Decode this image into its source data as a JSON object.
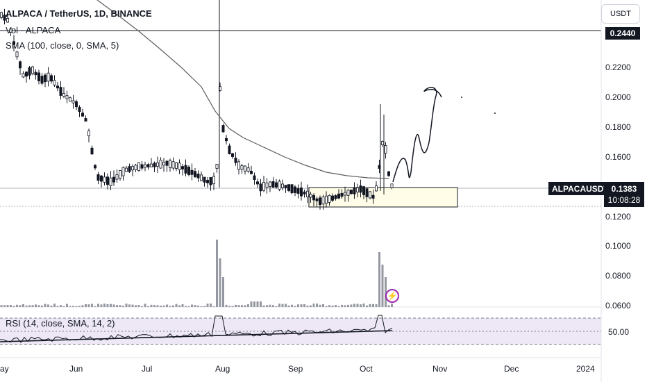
{
  "legend": {
    "title": "ALPACA / TetherUS, 1D, BINANCE",
    "volume": "Vol · ALPACA",
    "sma": "SMA (100, close, 0, SMA, 5)"
  },
  "rsi_legend": "RSI (14, close, SMA, 14, 2)",
  "currency_button": "USDT",
  "crosshair_price": "0.2440",
  "symbol_tag": "ALPACAUSDT",
  "last_price": "0.1383",
  "countdown": "10:08:28",
  "rsi_value": "50.00",
  "price_axis_labels": [
    "0.2200",
    "0.2000",
    "0.1800",
    "0.1600",
    "0.1200",
    "0.1000",
    "0.0800",
    "0.0600"
  ],
  "time_axis_labels": [
    "ay",
    "Jun",
    "Jul",
    "Aug",
    "Sep",
    "Oct",
    "Nov",
    "Dec",
    "2024"
  ],
  "colors": {
    "candle": "#131722",
    "sma_line": "#5d5d5d",
    "volume": "#9598a1",
    "rsi_band": "#ede7f6",
    "rsi_line": "#131722",
    "alert": "#9c27b0",
    "box_fill": "#fffde7"
  },
  "alert_icon": "lightning-alert-icon",
  "chart_data": {
    "type": "candlestick",
    "symbol": "ALPACAUSDT",
    "interval": "1D",
    "price_axis": {
      "min": 0.05,
      "max": 0.26,
      "ticks": [
        0.22,
        0.2,
        0.18,
        0.16,
        0.12,
        0.1,
        0.08,
        0.06
      ]
    },
    "time_axis": [
      "May",
      "Jun",
      "Jul",
      "Aug",
      "Sep",
      "Oct",
      "Nov",
      "Dec",
      "2024"
    ],
    "last_price": 0.1383,
    "sma_period": 100,
    "key_levels": {
      "highlighted_range": [
        0.125,
        0.138
      ]
    },
    "rsi_midline": 50.0
  }
}
